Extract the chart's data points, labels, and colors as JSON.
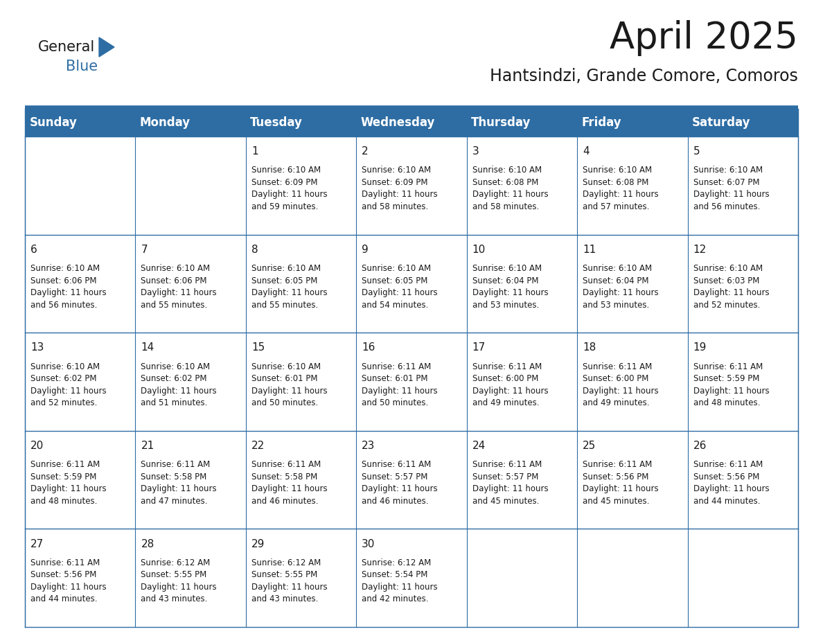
{
  "title": "April 2025",
  "subtitle": "Hantsindzi, Grande Comore, Comoros",
  "header_color": "#2E6DA4",
  "header_text_color": "#FFFFFF",
  "bg_color": "#FFFFFF",
  "cell_bg_color": "#FFFFFF",
  "grid_line_color": "#2E6DA4",
  "separator_line_color": "#2E6DA4",
  "day_headers": [
    "Sunday",
    "Monday",
    "Tuesday",
    "Wednesday",
    "Thursday",
    "Friday",
    "Saturday"
  ],
  "title_fontsize": 38,
  "subtitle_fontsize": 17,
  "header_fontsize": 12,
  "cell_day_fontsize": 11,
  "cell_text_fontsize": 8.5,
  "logo_general_fontsize": 15,
  "logo_blue_fontsize": 15,
  "weeks": [
    [
      {
        "day": "",
        "text": ""
      },
      {
        "day": "",
        "text": ""
      },
      {
        "day": "1",
        "text": "Sunrise: 6:10 AM\nSunset: 6:09 PM\nDaylight: 11 hours\nand 59 minutes."
      },
      {
        "day": "2",
        "text": "Sunrise: 6:10 AM\nSunset: 6:09 PM\nDaylight: 11 hours\nand 58 minutes."
      },
      {
        "day": "3",
        "text": "Sunrise: 6:10 AM\nSunset: 6:08 PM\nDaylight: 11 hours\nand 58 minutes."
      },
      {
        "day": "4",
        "text": "Sunrise: 6:10 AM\nSunset: 6:08 PM\nDaylight: 11 hours\nand 57 minutes."
      },
      {
        "day": "5",
        "text": "Sunrise: 6:10 AM\nSunset: 6:07 PM\nDaylight: 11 hours\nand 56 minutes."
      }
    ],
    [
      {
        "day": "6",
        "text": "Sunrise: 6:10 AM\nSunset: 6:06 PM\nDaylight: 11 hours\nand 56 minutes."
      },
      {
        "day": "7",
        "text": "Sunrise: 6:10 AM\nSunset: 6:06 PM\nDaylight: 11 hours\nand 55 minutes."
      },
      {
        "day": "8",
        "text": "Sunrise: 6:10 AM\nSunset: 6:05 PM\nDaylight: 11 hours\nand 55 minutes."
      },
      {
        "day": "9",
        "text": "Sunrise: 6:10 AM\nSunset: 6:05 PM\nDaylight: 11 hours\nand 54 minutes."
      },
      {
        "day": "10",
        "text": "Sunrise: 6:10 AM\nSunset: 6:04 PM\nDaylight: 11 hours\nand 53 minutes."
      },
      {
        "day": "11",
        "text": "Sunrise: 6:10 AM\nSunset: 6:04 PM\nDaylight: 11 hours\nand 53 minutes."
      },
      {
        "day": "12",
        "text": "Sunrise: 6:10 AM\nSunset: 6:03 PM\nDaylight: 11 hours\nand 52 minutes."
      }
    ],
    [
      {
        "day": "13",
        "text": "Sunrise: 6:10 AM\nSunset: 6:02 PM\nDaylight: 11 hours\nand 52 minutes."
      },
      {
        "day": "14",
        "text": "Sunrise: 6:10 AM\nSunset: 6:02 PM\nDaylight: 11 hours\nand 51 minutes."
      },
      {
        "day": "15",
        "text": "Sunrise: 6:10 AM\nSunset: 6:01 PM\nDaylight: 11 hours\nand 50 minutes."
      },
      {
        "day": "16",
        "text": "Sunrise: 6:11 AM\nSunset: 6:01 PM\nDaylight: 11 hours\nand 50 minutes."
      },
      {
        "day": "17",
        "text": "Sunrise: 6:11 AM\nSunset: 6:00 PM\nDaylight: 11 hours\nand 49 minutes."
      },
      {
        "day": "18",
        "text": "Sunrise: 6:11 AM\nSunset: 6:00 PM\nDaylight: 11 hours\nand 49 minutes."
      },
      {
        "day": "19",
        "text": "Sunrise: 6:11 AM\nSunset: 5:59 PM\nDaylight: 11 hours\nand 48 minutes."
      }
    ],
    [
      {
        "day": "20",
        "text": "Sunrise: 6:11 AM\nSunset: 5:59 PM\nDaylight: 11 hours\nand 48 minutes."
      },
      {
        "day": "21",
        "text": "Sunrise: 6:11 AM\nSunset: 5:58 PM\nDaylight: 11 hours\nand 47 minutes."
      },
      {
        "day": "22",
        "text": "Sunrise: 6:11 AM\nSunset: 5:58 PM\nDaylight: 11 hours\nand 46 minutes."
      },
      {
        "day": "23",
        "text": "Sunrise: 6:11 AM\nSunset: 5:57 PM\nDaylight: 11 hours\nand 46 minutes."
      },
      {
        "day": "24",
        "text": "Sunrise: 6:11 AM\nSunset: 5:57 PM\nDaylight: 11 hours\nand 45 minutes."
      },
      {
        "day": "25",
        "text": "Sunrise: 6:11 AM\nSunset: 5:56 PM\nDaylight: 11 hours\nand 45 minutes."
      },
      {
        "day": "26",
        "text": "Sunrise: 6:11 AM\nSunset: 5:56 PM\nDaylight: 11 hours\nand 44 minutes."
      }
    ],
    [
      {
        "day": "27",
        "text": "Sunrise: 6:11 AM\nSunset: 5:56 PM\nDaylight: 11 hours\nand 44 minutes."
      },
      {
        "day": "28",
        "text": "Sunrise: 6:12 AM\nSunset: 5:55 PM\nDaylight: 11 hours\nand 43 minutes."
      },
      {
        "day": "29",
        "text": "Sunrise: 6:12 AM\nSunset: 5:55 PM\nDaylight: 11 hours\nand 43 minutes."
      },
      {
        "day": "30",
        "text": "Sunrise: 6:12 AM\nSunset: 5:54 PM\nDaylight: 11 hours\nand 42 minutes."
      },
      {
        "day": "",
        "text": ""
      },
      {
        "day": "",
        "text": ""
      },
      {
        "day": "",
        "text": ""
      }
    ]
  ]
}
